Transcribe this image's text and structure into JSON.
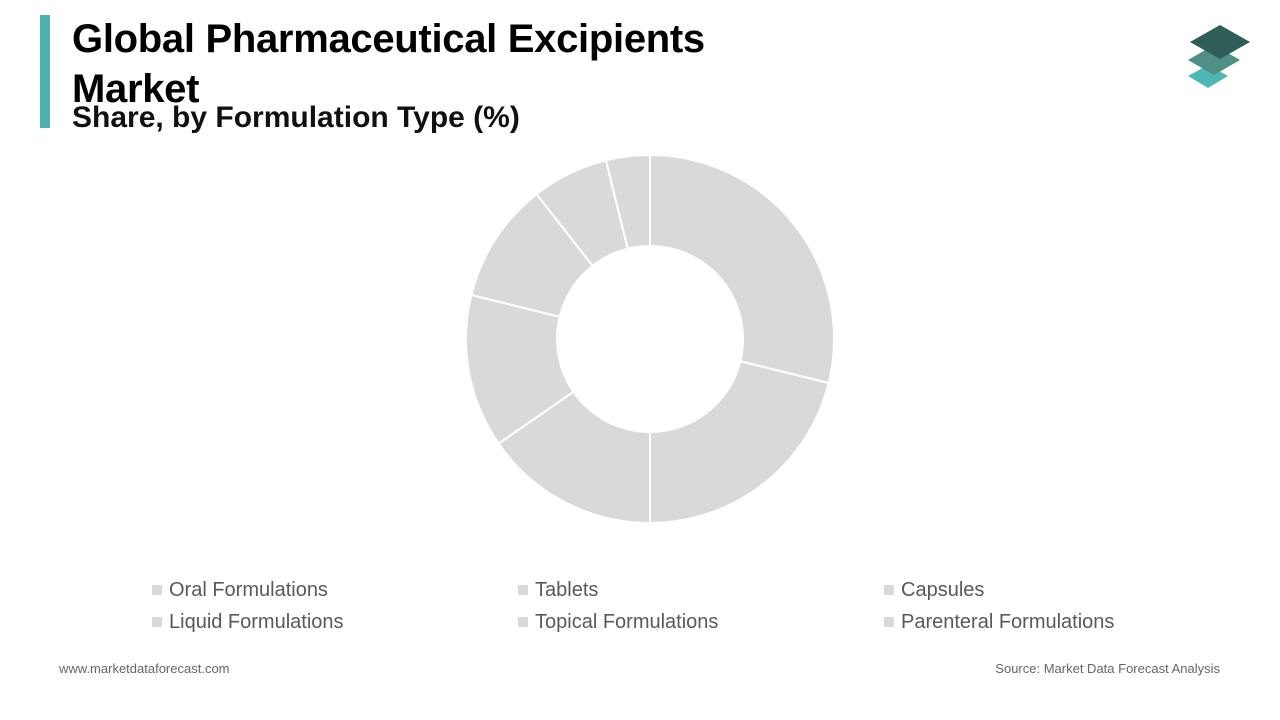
{
  "header": {
    "title": "Global Pharmaceutical Excipients Market",
    "subtitle": "Share, by Formulation Type (%)"
  },
  "colors": {
    "accent": "#4eb3b0",
    "slice": "#d9d9d9",
    "slice_border": "#ffffff",
    "logo_top": "#2f5d57",
    "logo_mid": "#4f8f86",
    "logo_bottom": "#4fb8b5"
  },
  "logo": {
    "icon": "stacked-layers-icon"
  },
  "chart_data": {
    "type": "pie",
    "donut": true,
    "title": "",
    "labels": [
      "Oral Formulations",
      "Tablets",
      "Capsules",
      "Liquid Formulations",
      "Topical Formulations",
      "Parenteral Formulations"
    ],
    "slices_clockwise_from_top": [
      {
        "label": "Oral Formulations",
        "value": 30
      },
      {
        "label": "Tablets",
        "value": 22
      },
      {
        "label": "Capsules",
        "value": 16
      },
      {
        "label": "Liquid Formulations",
        "value": 14
      },
      {
        "label": "Topical Formulations",
        "value": 11
      },
      {
        "label": "Parenteral Formulations",
        "value": 7
      }
    ],
    "extra_slice_value": 4,
    "data_labels_shown": false,
    "legend_position": "bottom"
  },
  "footer": {
    "website": "www.marketdataforecast.com",
    "source": "Source: Market Data Forecast Analysis"
  }
}
